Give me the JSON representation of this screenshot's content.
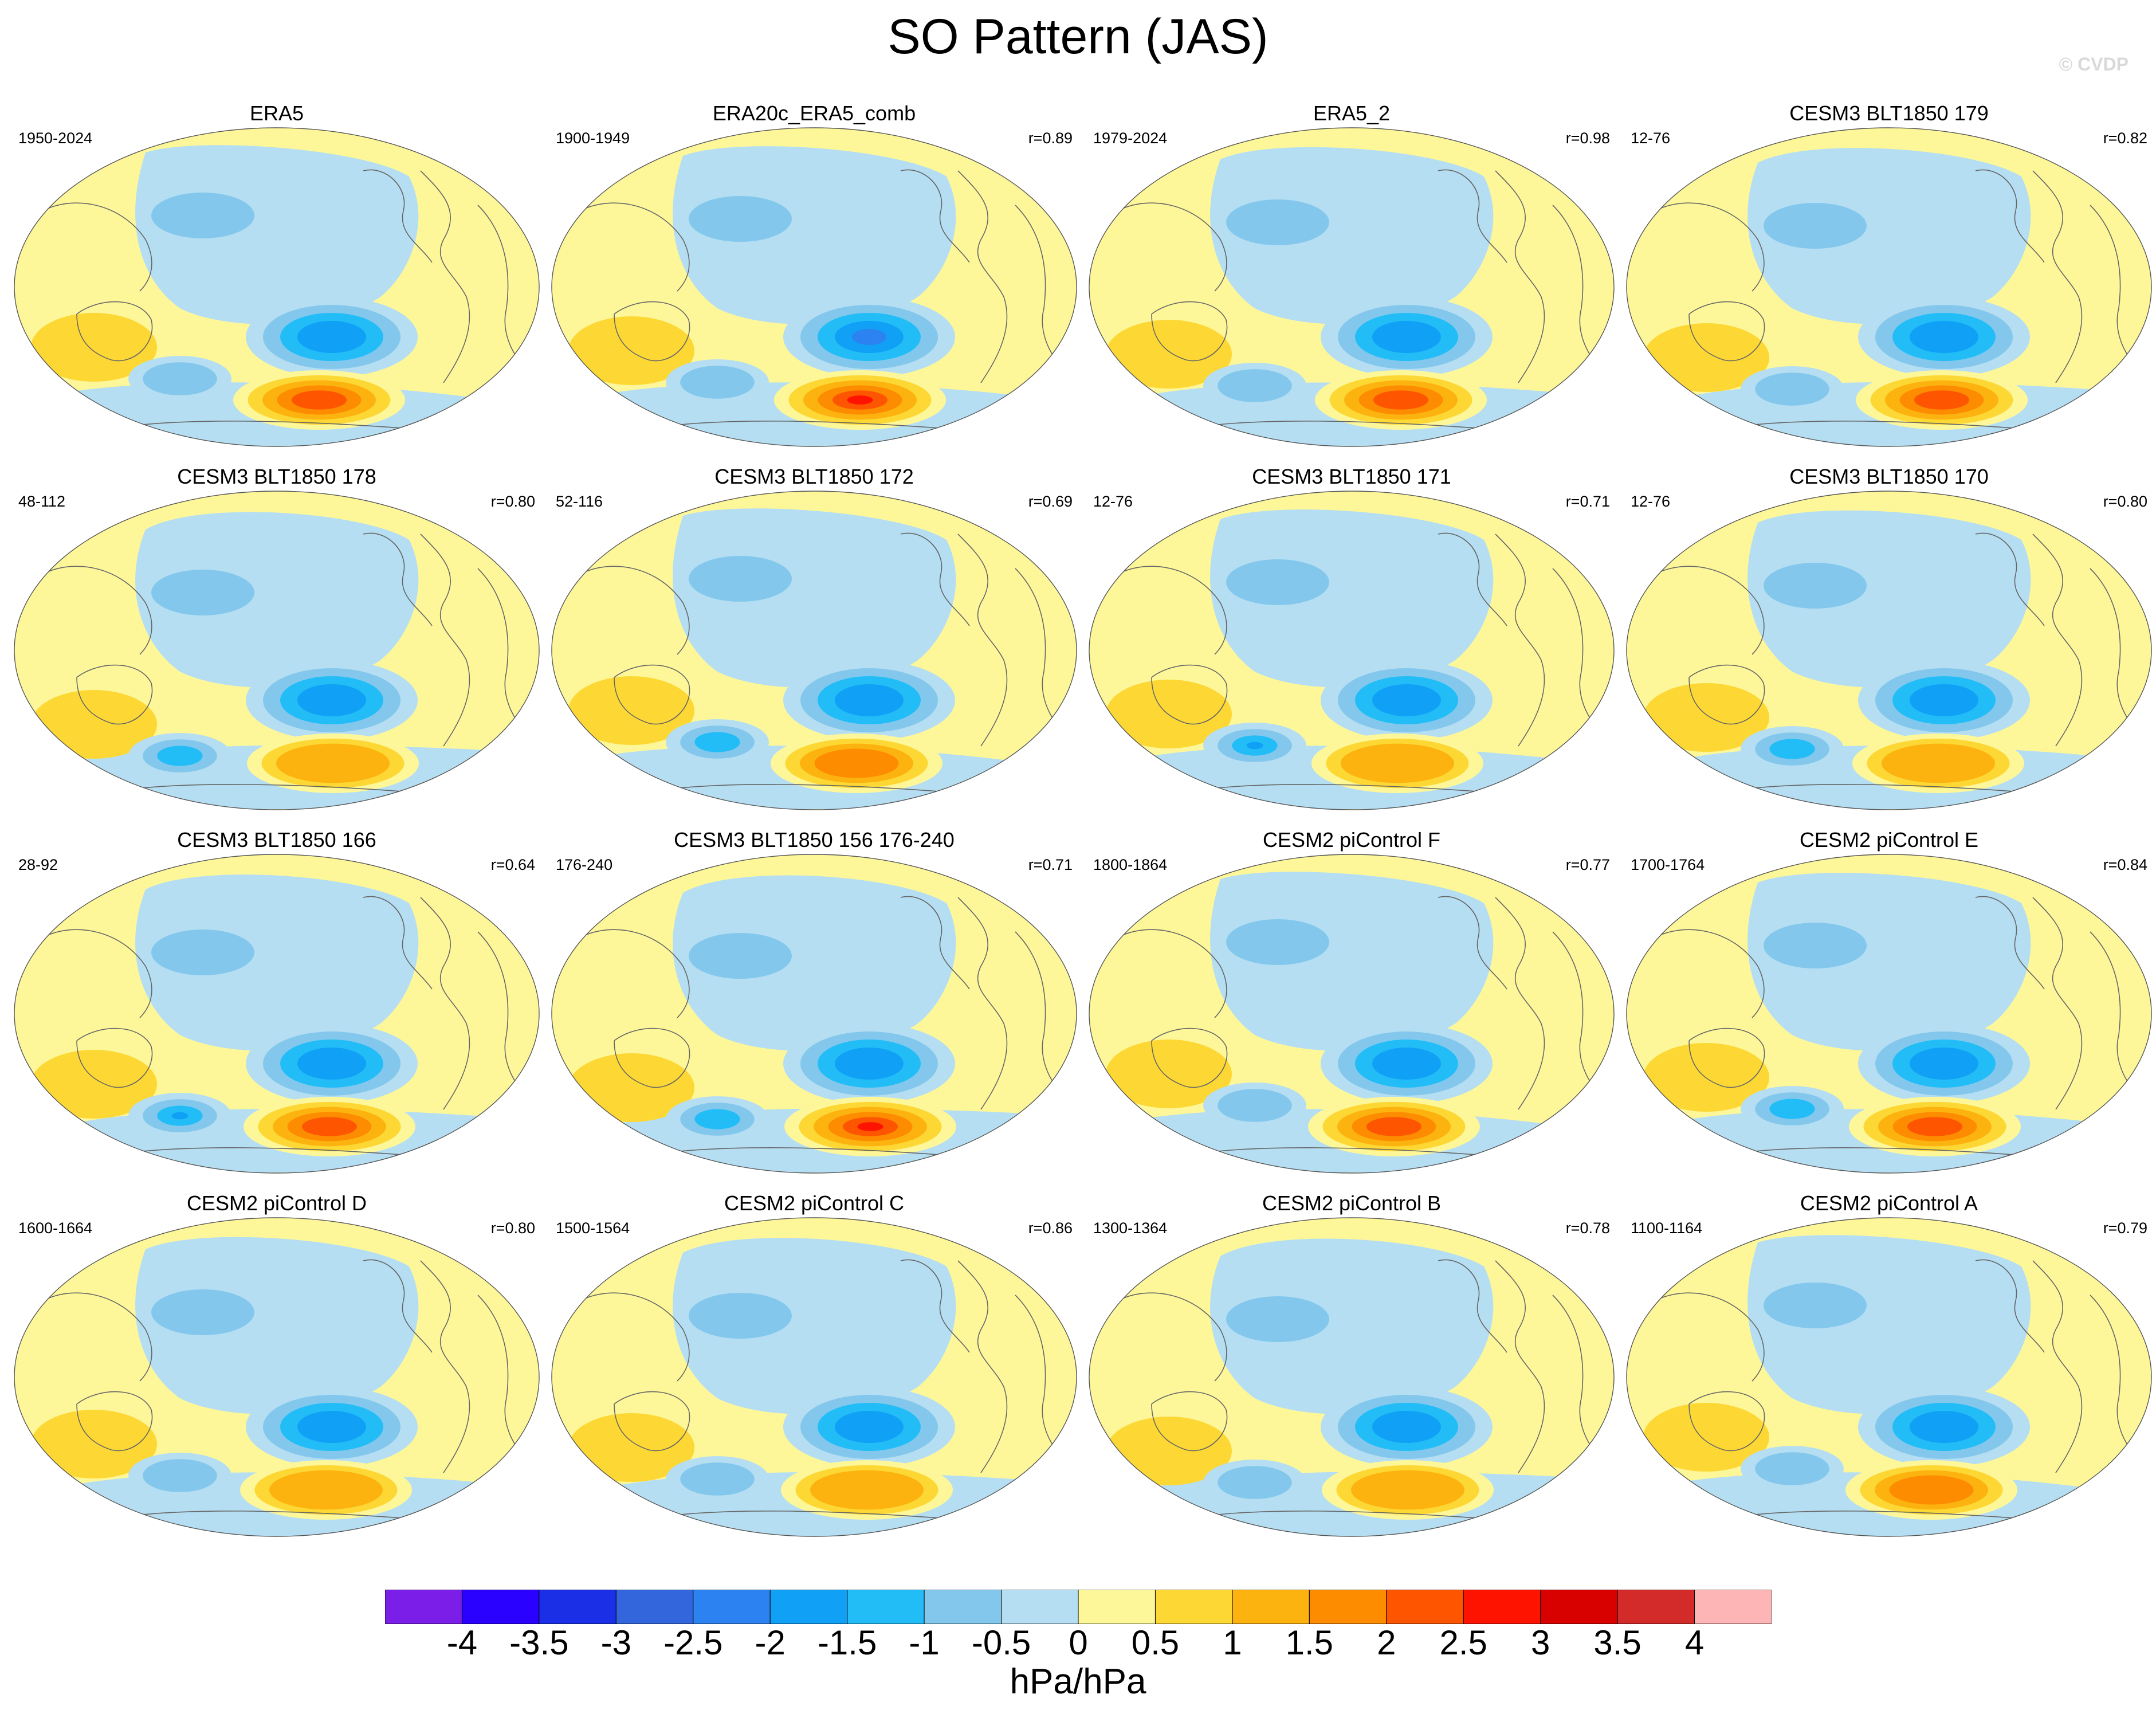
{
  "title": "SO Pattern (JAS)",
  "watermark": "© CVDP",
  "panels": [
    {
      "title": "ERA5",
      "period": "1950-2024",
      "corr": "",
      "neg": -2.0,
      "pos": 2.5,
      "neg2": -1.0,
      "variant": 0
    },
    {
      "title": "ERA20c_ERA5_comb",
      "period": "1900-1949",
      "corr": "r=0.89",
      "neg": -2.5,
      "pos": 3.5,
      "neg2": -1.0,
      "variant": 1
    },
    {
      "title": "ERA5_2",
      "period": "1979-2024",
      "corr": "r=0.98",
      "neg": -2.0,
      "pos": 2.5,
      "neg2": -1.0,
      "variant": 2
    },
    {
      "title": "CESM3 BLT1850 179",
      "period": "12-76",
      "corr": "r=0.82",
      "neg": -2.0,
      "pos": 2.5,
      "neg2": -1.0,
      "variant": 3
    },
    {
      "title": "CESM3 BLT1850 178",
      "period": "48-112",
      "corr": "r=0.80",
      "neg": -2.0,
      "pos": 1.5,
      "neg2": -1.5,
      "variant": 4
    },
    {
      "title": "CESM3 BLT1850 172",
      "period": "52-116",
      "corr": "r=0.69",
      "neg": -2.0,
      "pos": 2.0,
      "neg2": -1.5,
      "variant": 5
    },
    {
      "title": "CESM3 BLT1850 171",
      "period": "12-76",
      "corr": "r=0.71",
      "neg": -2.0,
      "pos": 1.5,
      "neg2": -2.0,
      "variant": 6
    },
    {
      "title": "CESM3 BLT1850 170",
      "period": "12-76",
      "corr": "r=0.80",
      "neg": -2.0,
      "pos": 1.5,
      "neg2": -1.5,
      "variant": 7
    },
    {
      "title": "CESM3 BLT1850 166",
      "period": "28-92",
      "corr": "r=0.64",
      "neg": -2.0,
      "pos": 2.5,
      "neg2": -2.5,
      "variant": 8
    },
    {
      "title": "CESM3 BLT1850 156 176-240",
      "period": "176-240",
      "corr": "r=0.71",
      "neg": -2.0,
      "pos": 3.0,
      "neg2": -1.5,
      "variant": 9
    },
    {
      "title": "CESM2 piControl F",
      "period": "1800-1864",
      "corr": "r=0.77",
      "neg": -2.0,
      "pos": 2.5,
      "neg2": -1.0,
      "variant": 10
    },
    {
      "title": "CESM2 piControl E",
      "period": "1700-1764",
      "corr": "r=0.84",
      "neg": -2.0,
      "pos": 2.5,
      "neg2": -1.5,
      "variant": 11
    },
    {
      "title": "CESM2 piControl D",
      "period": "1600-1664",
      "corr": "r=0.80",
      "neg": -2.0,
      "pos": 1.5,
      "neg2": -1.0,
      "variant": 12
    },
    {
      "title": "CESM2 piControl C",
      "period": "1500-1564",
      "corr": "r=0.86",
      "neg": -2.0,
      "pos": 1.5,
      "neg2": -1.0,
      "variant": 13
    },
    {
      "title": "CESM2 piControl B",
      "period": "1300-1364",
      "corr": "r=0.78",
      "neg": -2.0,
      "pos": 1.5,
      "neg2": -1.0,
      "variant": 14
    },
    {
      "title": "CESM2 piControl A",
      "period": "1100-1164",
      "corr": "r=0.79",
      "neg": -2.0,
      "pos": 2.0,
      "neg2": -1.0,
      "variant": 15
    }
  ],
  "colorbar": {
    "labels": [
      "-4",
      "-3.5",
      "-3",
      "-2.5",
      "-2",
      "-1.5",
      "-1",
      "-0.5",
      "0",
      "0.5",
      "1",
      "1.5",
      "2",
      "2.5",
      "3",
      "3.5",
      "4"
    ],
    "colors": [
      "#7b1fe8",
      "#2a00ff",
      "#1a2fe6",
      "#3366dd",
      "#2b82f0",
      "#10a0f5",
      "#22bdf7",
      "#83c8ec",
      "#b5def2",
      "#fdf79a",
      "#fdd835",
      "#fdb30f",
      "#fd8c00",
      "#fd5500",
      "#fe1200",
      "#d90000",
      "#d32a2a",
      "#fdb5b5"
    ],
    "units": "hPa/hPa"
  }
}
